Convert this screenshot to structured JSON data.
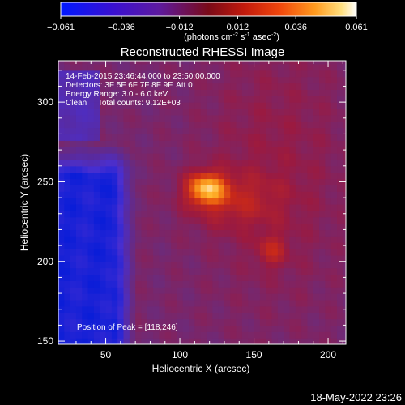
{
  "chart_data": {
    "type": "heatmap",
    "title": "Reconstructed RHESSI Image",
    "xlabel": "Heliocentric X (arcsec)",
    "ylabel": "Heliocentric Y (arcsec)",
    "xlim": [
      18,
      212
    ],
    "ylim": [
      148,
      326
    ],
    "x_ticks": [
      50,
      100,
      150,
      200
    ],
    "y_ticks": [
      150,
      200,
      250,
      300
    ],
    "grid": false,
    "colorbar": {
      "label_text": "(photons cm",
      "label_exp1": "-2",
      "label_mid1": " s",
      "label_exp2": "-1",
      "label_mid2": " asec",
      "label_exp3": "-2",
      "label_end": ")",
      "range": [
        -0.061,
        0.061
      ],
      "ticks": [
        -0.061,
        -0.036,
        -0.012,
        0.012,
        0.036,
        0.061
      ],
      "tick_labels": [
        "−0.061",
        "−0.036",
        "−0.012",
        "0.012",
        "0.036",
        "0.061"
      ]
    },
    "annotations": [
      "14-Feb-2015 23:46:44.000 to 23:50:00.000",
      "Detectors: 3F 5F 6F 7F 8F 9F, Att 0",
      "Energy Range: 3.0 - 6.0 keV",
      "Clean     Total counts: 9.12E+03"
    ],
    "peak_label": "Position of Peak = [118,246]",
    "peak": [
      118,
      246
    ],
    "secondary_source": [
      162,
      207
    ],
    "colors": {
      "background": "#000000",
      "colormap": [
        "#0a1dd8",
        "#4a2fd0",
        "#5a2a9c",
        "#6e2a78",
        "#9b1a40",
        "#c8281a",
        "#f06a10",
        "#ffb42a",
        "#ffffff"
      ]
    }
  },
  "footer": {
    "timestamp": "18-May-2022 23:26"
  }
}
